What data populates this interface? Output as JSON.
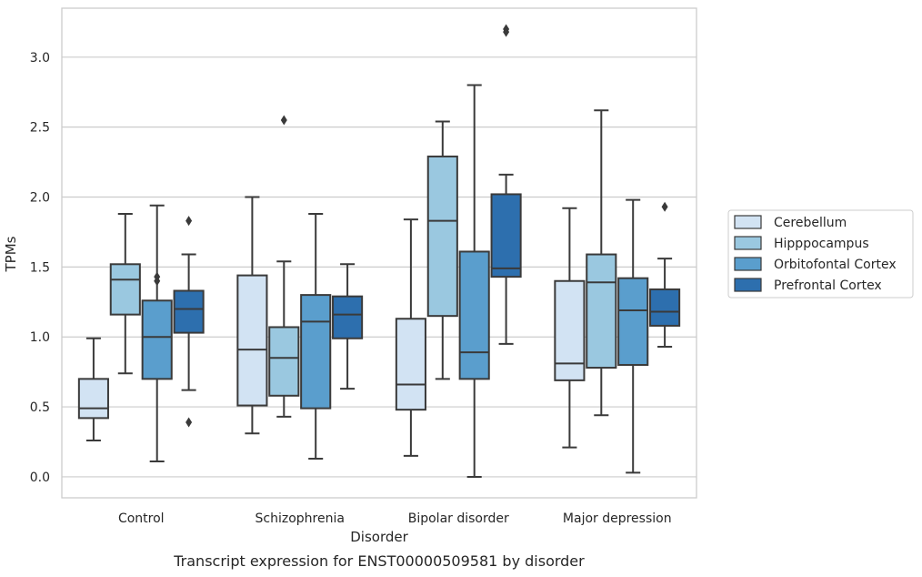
{
  "chart_data": {
    "type": "boxplot",
    "title": "",
    "caption": "Transcript expression for ENST00000509581 by disorder",
    "xlabel": "Disorder",
    "ylabel": "TPMs",
    "ylim": [
      -0.15,
      3.35
    ],
    "yticks": [
      "0.0",
      "0.5",
      "1.0",
      "1.5",
      "2.0",
      "2.5",
      "3.0"
    ],
    "grid": "horizontal",
    "legend_position": "right",
    "categories": [
      "Control",
      "Schizophrenia",
      "Bipolar disorder",
      "Major depression"
    ],
    "series": [
      {
        "name": "Cerebellum",
        "color": "#d2e3f3",
        "boxes": [
          {
            "whislo": 0.26,
            "q1": 0.42,
            "med": 0.49,
            "q3": 0.7,
            "whishi": 0.99,
            "fliers": []
          },
          {
            "whislo": 0.31,
            "q1": 0.51,
            "med": 0.91,
            "q3": 1.44,
            "whishi": 2.0,
            "fliers": []
          },
          {
            "whislo": 0.15,
            "q1": 0.48,
            "med": 0.66,
            "q3": 1.13,
            "whishi": 1.84,
            "fliers": []
          },
          {
            "whislo": 0.21,
            "q1": 0.69,
            "med": 0.81,
            "q3": 1.4,
            "whishi": 1.92,
            "fliers": []
          }
        ]
      },
      {
        "name": "Hipppocampus",
        "color": "#9ac8e0",
        "boxes": [
          {
            "whislo": 0.74,
            "q1": 1.16,
            "med": 1.41,
            "q3": 1.52,
            "whishi": 1.88,
            "fliers": []
          },
          {
            "whislo": 0.43,
            "q1": 0.58,
            "med": 0.85,
            "q3": 1.07,
            "whishi": 1.54,
            "fliers": [
              2.55
            ]
          },
          {
            "whislo": 0.7,
            "q1": 1.15,
            "med": 1.83,
            "q3": 2.29,
            "whishi": 2.54,
            "fliers": []
          },
          {
            "whislo": 0.44,
            "q1": 0.78,
            "med": 1.39,
            "q3": 1.59,
            "whishi": 2.62,
            "fliers": []
          }
        ]
      },
      {
        "name": "Orbitofontal Cortex",
        "color": "#5a9ecd",
        "boxes": [
          {
            "whislo": 0.11,
            "q1": 0.7,
            "med": 1.0,
            "q3": 1.26,
            "whishi": 1.94,
            "fliers": [
              1.4,
              1.43
            ]
          },
          {
            "whislo": 0.13,
            "q1": 0.49,
            "med": 1.11,
            "q3": 1.3,
            "whishi": 1.88,
            "fliers": []
          },
          {
            "whislo": 0.0,
            "q1": 0.7,
            "med": 0.89,
            "q3": 1.61,
            "whishi": 2.8,
            "fliers": []
          },
          {
            "whislo": 0.03,
            "q1": 0.8,
            "med": 1.19,
            "q3": 1.42,
            "whishi": 1.98,
            "fliers": []
          }
        ]
      },
      {
        "name": "Prefrontal Cortex",
        "color": "#2d6fae",
        "boxes": [
          {
            "whislo": 0.62,
            "q1": 1.03,
            "med": 1.2,
            "q3": 1.33,
            "whishi": 1.59,
            "fliers": [
              1.83,
              0.39
            ]
          },
          {
            "whislo": 0.63,
            "q1": 0.99,
            "med": 1.16,
            "q3": 1.29,
            "whishi": 1.52,
            "fliers": []
          },
          {
            "whislo": 0.95,
            "q1": 1.43,
            "med": 1.49,
            "q3": 2.02,
            "whishi": 2.16,
            "fliers": [
              3.18,
              3.2
            ]
          },
          {
            "whislo": 0.93,
            "q1": 1.08,
            "med": 1.18,
            "q3": 1.34,
            "whishi": 1.56,
            "fliers": [
              1.93
            ]
          }
        ]
      }
    ]
  }
}
